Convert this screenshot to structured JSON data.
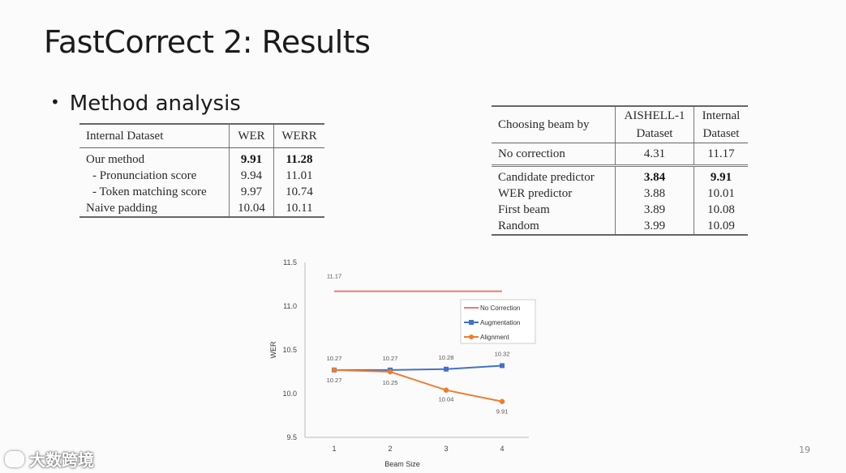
{
  "slide": {
    "title": "FastCorrect 2: Results",
    "bullet": "Method analysis",
    "page_number": "19",
    "watermark": "大数跨境"
  },
  "table1": {
    "header": [
      "Internal Dataset",
      "WER",
      "WERR"
    ],
    "rows": [
      [
        "Our method",
        "9.91",
        "11.28"
      ],
      [
        "- Pronunciation score",
        "9.94",
        "11.01"
      ],
      [
        "- Token matching score",
        "9.97",
        "10.74"
      ],
      [
        "Naive padding",
        "10.04",
        "10.11"
      ]
    ]
  },
  "table2": {
    "header": {
      "col0": "Choosing beam by",
      "col1_line1": "AISHELL-1",
      "col1_line2": "Dataset",
      "col2_line1": "Internal",
      "col2_line2": "Dataset"
    },
    "rows": [
      [
        "No correction",
        "4.31",
        "11.17"
      ],
      [
        "Candidate predictor",
        "3.84",
        "9.91"
      ],
      [
        "WER predictor",
        "3.88",
        "10.01"
      ],
      [
        "First beam",
        "3.89",
        "10.08"
      ],
      [
        "Random",
        "3.99",
        "10.09"
      ]
    ]
  },
  "chart_data": {
    "type": "line",
    "xlabel": "Beam Size",
    "ylabel": "WER",
    "x": [
      1,
      2,
      3,
      4
    ],
    "ylim": [
      9.5,
      11.5
    ],
    "yticks": [
      "9.5",
      "10.0",
      "10.5",
      "11.0",
      "11.5"
    ],
    "xticks": [
      "1",
      "2",
      "3",
      "4"
    ],
    "grid": false,
    "legend_position": "right",
    "series": [
      {
        "name": "No Correction",
        "values": [
          11.17,
          11.17,
          11.17,
          11.17
        ],
        "color": "#e8797b",
        "labels": [
          "11.17",
          "",
          "",
          ""
        ],
        "marker": "none"
      },
      {
        "name": "Augmentation",
        "values": [
          10.27,
          10.27,
          10.28,
          10.32
        ],
        "color": "#4472c4",
        "labels": [
          "10.27",
          "10.27",
          "10.28",
          "10.32"
        ],
        "marker": "square"
      },
      {
        "name": "Alignment",
        "values": [
          10.27,
          10.25,
          10.04,
          9.91
        ],
        "color": "#ed7d31",
        "labels": [
          "10.27",
          "10.25",
          "10.04",
          "9.91"
        ],
        "marker": "circle"
      }
    ]
  }
}
